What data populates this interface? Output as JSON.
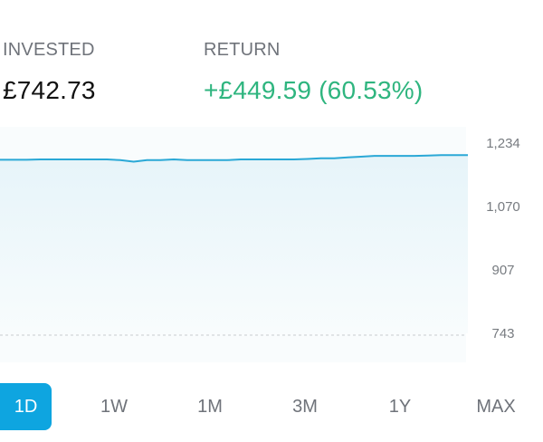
{
  "stats": {
    "invested_label": "INVESTED",
    "invested_value": "£742.73",
    "return_label": "RETURN",
    "return_value": "+£449.59 (60.53%)"
  },
  "chart_data": {
    "type": "area",
    "y_ticks": [
      "1,234",
      "1,070",
      "907",
      "743"
    ],
    "y_tick_values": [
      1234,
      1070,
      907,
      743
    ],
    "ylim": [
      743,
      1234
    ],
    "baseline_value": 743,
    "grid": false,
    "series": [
      {
        "values": [
          1191,
          1191,
          1191,
          1192,
          1192,
          1192,
          1192,
          1192,
          1192,
          1190,
          1186,
          1190,
          1190,
          1192,
          1190,
          1190,
          1190,
          1190,
          1192,
          1192,
          1192,
          1192,
          1192,
          1193,
          1195,
          1195,
          1197,
          1199,
          1201,
          1201,
          1201,
          1201,
          1202,
          1203,
          1203,
          1203
        ],
        "color": "#2aa8d6"
      }
    ]
  },
  "time_ranges": [
    {
      "label": "1D",
      "active": true
    },
    {
      "label": "1W",
      "active": false
    },
    {
      "label": "1M",
      "active": false
    },
    {
      "label": "3M",
      "active": false
    },
    {
      "label": "1Y",
      "active": false
    },
    {
      "label": "MAX",
      "active": false
    }
  ],
  "colors": {
    "line": "#2aa8d6",
    "return_positive": "#2fb57f",
    "active_range": "#0ea5e0"
  }
}
